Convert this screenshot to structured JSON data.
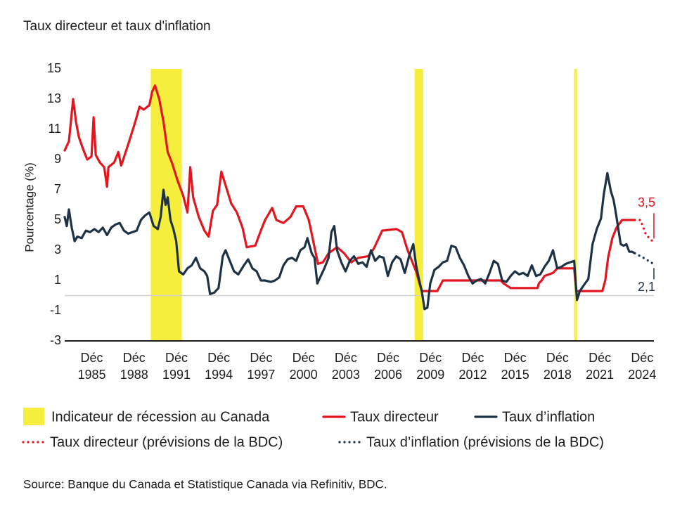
{
  "chart_data": {
    "type": "line",
    "title": "Taux directeur et taux d'inflation",
    "y_label": "Pourcentage (%)",
    "source": "Source: Banque du Canada et Statistique Canada via Refinitiv, BDC.",
    "xlim": [
      1984.0,
      2025.75
    ],
    "xticks": [
      {
        "value": 1985.92,
        "label": "Déc 1985"
      },
      {
        "value": 1988.92,
        "label": "Déc 1988"
      },
      {
        "value": 1991.92,
        "label": "Déc 1991"
      },
      {
        "value": 1994.92,
        "label": "Déc 1994"
      },
      {
        "value": 1997.92,
        "label": "Déc 1997"
      },
      {
        "value": 2000.92,
        "label": "Déc 2000"
      },
      {
        "value": 2003.92,
        "label": "Déc 2003"
      },
      {
        "value": 2006.92,
        "label": "Déc 2006"
      },
      {
        "value": 2009.92,
        "label": "Déc 2009"
      },
      {
        "value": 2012.92,
        "label": "Déc 2012"
      },
      {
        "value": 2015.92,
        "label": "Déc 2015"
      },
      {
        "value": 2018.92,
        "label": "Déc 2018"
      },
      {
        "value": 2021.92,
        "label": "Déc 2021"
      },
      {
        "value": 2024.92,
        "label": "Déc 2024"
      }
    ],
    "ylim": [
      -3,
      15
    ],
    "yticks": [
      15,
      13,
      11,
      9,
      7,
      5,
      3,
      1,
      -1,
      -3
    ],
    "reference_line": 0,
    "recession": {
      "name": "Indicateur de récession au Canada",
      "color": "#f6ee3c",
      "periods": [
        [
          1990.1,
          1992.3
        ],
        [
          2008.8,
          2009.4
        ],
        [
          2020.1,
          2020.3
        ]
      ]
    },
    "series": [
      {
        "name": "Taux directeur",
        "color": "#e3151f",
        "style": "solid",
        "x": [
          1984.0,
          1984.3,
          1984.6,
          1984.8,
          1985.0,
          1985.3,
          1985.6,
          1985.9,
          1986.05,
          1986.2,
          1986.5,
          1986.8,
          1987.0,
          1987.1,
          1987.5,
          1987.8,
          1988.0,
          1988.5,
          1989.0,
          1989.3,
          1989.6,
          1990.0,
          1990.2,
          1990.4,
          1990.7,
          1991.0,
          1991.3,
          1991.6,
          1992.0,
          1992.4,
          1992.7,
          1992.9,
          1993.1,
          1993.5,
          1993.9,
          1994.2,
          1994.5,
          1994.8,
          1995.1,
          1995.4,
          1995.8,
          1996.2,
          1996.6,
          1996.9,
          1997.5,
          1997.9,
          1998.2,
          1998.7,
          1999.0,
          1999.5,
          2000.0,
          2000.4,
          2000.9,
          2001.3,
          2001.7,
          2001.95,
          2002.3,
          2002.7,
          2003.3,
          2003.8,
          2004.3,
          2004.8,
          2005.5,
          2005.9,
          2006.5,
          2007.5,
          2007.9,
          2008.3,
          2008.9,
          2009.3,
          2010.4,
          2010.8,
          2014.9,
          2015.1,
          2015.6,
          2017.5,
          2017.6,
          2017.8,
          2018.0,
          2018.6,
          2018.9,
          2020.1,
          2020.25,
          2022.1,
          2022.3,
          2022.5,
          2022.8,
          2023.1,
          2023.5,
          2024.4
        ],
        "values": [
          9.6,
          10.2,
          13.0,
          11.5,
          10.5,
          9.7,
          9.0,
          9.2,
          11.8,
          9.3,
          8.8,
          8.5,
          7.2,
          8.5,
          8.8,
          9.5,
          8.6,
          10.0,
          11.5,
          12.5,
          12.3,
          12.6,
          13.5,
          13.9,
          13.0,
          11.5,
          9.5,
          8.8,
          7.6,
          6.6,
          5.5,
          8.5,
          6.5,
          5.2,
          4.3,
          3.9,
          5.6,
          6.0,
          8.2,
          7.3,
          6.1,
          5.5,
          4.5,
          3.2,
          3.3,
          4.3,
          5.0,
          5.8,
          5.0,
          4.8,
          5.2,
          5.9,
          5.9,
          5.0,
          3.2,
          2.1,
          2.2,
          2.8,
          3.2,
          2.8,
          2.2,
          2.5,
          2.6,
          3.1,
          4.3,
          4.4,
          4.2,
          3.0,
          1.6,
          0.3,
          0.3,
          1.0,
          1.0,
          0.8,
          0.5,
          0.5,
          0.8,
          1.0,
          1.3,
          1.5,
          1.8,
          1.8,
          0.3,
          0.3,
          1.0,
          2.5,
          3.8,
          4.5,
          5.0,
          5.0
        ]
      },
      {
        "name": "Taux d’inflation",
        "color": "#1d3345",
        "style": "solid",
        "x": [
          1984.0,
          1984.15,
          1984.3,
          1984.5,
          1984.7,
          1984.9,
          1985.2,
          1985.5,
          1985.8,
          1986.1,
          1986.4,
          1986.7,
          1987.0,
          1987.3,
          1987.6,
          1987.9,
          1988.2,
          1988.5,
          1988.8,
          1989.1,
          1989.4,
          1989.7,
          1990.0,
          1990.3,
          1990.6,
          1990.8,
          1991.0,
          1991.15,
          1991.3,
          1991.5,
          1991.7,
          1991.9,
          1992.1,
          1992.4,
          1992.7,
          1993.0,
          1993.3,
          1993.6,
          1993.9,
          1994.1,
          1994.3,
          1994.6,
          1994.9,
          1995.2,
          1995.4,
          1995.7,
          1996.0,
          1996.3,
          1996.7,
          1997.0,
          1997.3,
          1997.6,
          1997.9,
          1998.2,
          1998.6,
          1998.9,
          1999.2,
          1999.5,
          1999.8,
          2000.1,
          2000.4,
          2000.7,
          2001.0,
          2001.2,
          2001.5,
          2001.7,
          2001.9,
          2002.1,
          2002.4,
          2002.7,
          2002.9,
          2003.1,
          2003.3,
          2003.6,
          2003.9,
          2004.2,
          2004.5,
          2004.8,
          2005.1,
          2005.4,
          2005.7,
          2006.0,
          2006.3,
          2006.6,
          2006.9,
          2007.2,
          2007.5,
          2007.8,
          2008.1,
          2008.4,
          2008.7,
          2008.9,
          2009.1,
          2009.3,
          2009.5,
          2009.7,
          2009.9,
          2010.2,
          2010.5,
          2010.8,
          2011.1,
          2011.4,
          2011.7,
          2012.0,
          2012.3,
          2012.6,
          2012.9,
          2013.2,
          2013.5,
          2013.8,
          2014.1,
          2014.4,
          2014.7,
          2015.0,
          2015.3,
          2015.6,
          2015.9,
          2016.2,
          2016.5,
          2016.8,
          2017.1,
          2017.4,
          2017.7,
          2018.0,
          2018.3,
          2018.6,
          2018.9,
          2019.2,
          2019.5,
          2019.8,
          2020.1,
          2020.3,
          2020.5,
          2020.8,
          2021.1,
          2021.4,
          2021.7,
          2022.0,
          2022.2,
          2022.45,
          2022.7,
          2022.9,
          2023.1,
          2023.4,
          2023.6,
          2023.8,
          2024.0,
          2024.2,
          2024.4
        ],
        "values": [
          5.2,
          4.6,
          5.7,
          4.5,
          3.6,
          3.9,
          3.8,
          4.3,
          4.2,
          4.4,
          4.2,
          4.5,
          4.0,
          4.5,
          4.7,
          4.8,
          4.3,
          4.1,
          4.2,
          4.3,
          5.0,
          5.3,
          5.5,
          4.6,
          4.4,
          5.2,
          7.0,
          6.0,
          6.5,
          5.0,
          4.4,
          3.6,
          1.6,
          1.4,
          1.8,
          2.0,
          2.5,
          1.8,
          1.6,
          1.3,
          0.1,
          0.2,
          0.5,
          2.6,
          3.0,
          2.3,
          1.6,
          1.4,
          2.0,
          2.4,
          1.8,
          1.6,
          1.0,
          1.0,
          0.9,
          1.0,
          1.2,
          2.0,
          2.4,
          2.5,
          2.3,
          3.0,
          3.2,
          3.8,
          2.8,
          2.5,
          0.8,
          1.2,
          1.8,
          2.5,
          4.2,
          4.6,
          3.0,
          2.2,
          1.6,
          2.3,
          2.6,
          2.1,
          2.2,
          1.9,
          3.0,
          2.3,
          2.6,
          2.5,
          1.3,
          2.2,
          2.6,
          2.4,
          1.5,
          2.6,
          3.4,
          2.0,
          1.1,
          0.3,
          -0.9,
          -0.8,
          0.8,
          1.7,
          1.9,
          2.2,
          2.3,
          3.3,
          3.2,
          2.5,
          2.0,
          1.3,
          0.8,
          1.0,
          1.1,
          0.8,
          1.5,
          2.3,
          2.1,
          1.0,
          0.9,
          1.3,
          1.6,
          1.4,
          1.5,
          1.3,
          2.0,
          1.3,
          1.4,
          1.9,
          2.3,
          3.0,
          1.8,
          1.9,
          2.1,
          2.2,
          2.3,
          -0.3,
          0.3,
          0.7,
          1.1,
          3.4,
          4.4,
          5.1,
          6.7,
          8.1,
          6.9,
          6.3,
          5.2,
          3.4,
          3.3,
          3.4,
          2.9,
          2.9,
          2.8
        ]
      },
      {
        "name": "Taux directeur (prévisions de la BDC)",
        "color": "#e3151f",
        "style": "dotted",
        "x": [
          2024.4,
          2024.6,
          2024.8,
          2025.0,
          2025.2,
          2025.5,
          2025.75
        ],
        "values": [
          5.0,
          5.0,
          5.0,
          4.5,
          4.0,
          3.75,
          3.5
        ],
        "value_labels": [
          null,
          null,
          null,
          null,
          null,
          null,
          "3,5"
        ]
      },
      {
        "name": "Taux d’inflation (prévisions de la BDC)",
        "color": "#1d3345",
        "style": "dotted",
        "x": [
          2024.4,
          2024.8,
          2025.2,
          2025.5,
          2025.75
        ],
        "values": [
          2.8,
          2.6,
          2.4,
          2.2,
          2.1
        ],
        "value_labels": [
          null,
          null,
          null,
          null,
          "2,1"
        ]
      }
    ]
  }
}
